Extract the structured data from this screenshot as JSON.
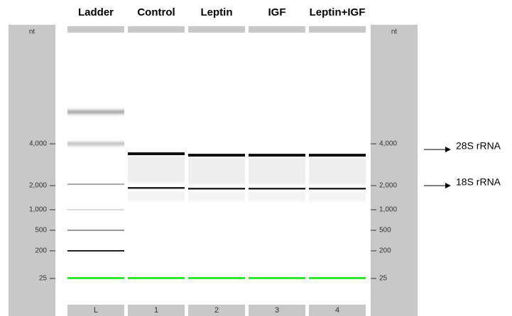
{
  "lanes": {
    "headers": [
      "Ladder",
      "Control",
      "Leptin",
      "IGF",
      "Leptin+IGF"
    ],
    "labels": [
      "L",
      "1",
      "2",
      "3",
      "4"
    ]
  },
  "left_axis": {
    "unit": "nt",
    "ticks": [
      "4,000",
      "2,000",
      "1,000",
      "500",
      "200",
      "25"
    ]
  },
  "right_axis": {
    "unit": "nt",
    "ticks": [
      "4,000",
      "2,000",
      "1,000",
      "500",
      "200",
      "25"
    ]
  },
  "annotations": [
    "28S rRNA",
    "18S rRNA"
  ]
}
